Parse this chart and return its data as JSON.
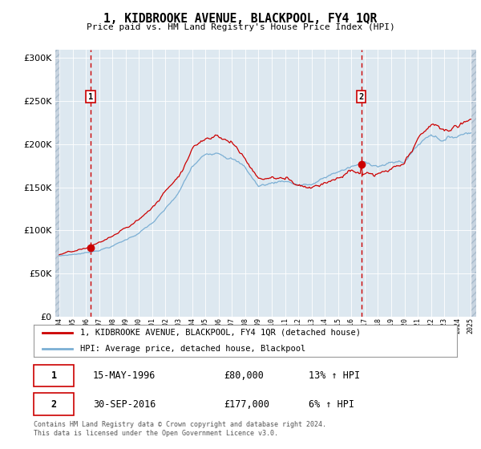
{
  "title": "1, KIDBROOKE AVENUE, BLACKPOOL, FY4 1QR",
  "subtitle": "Price paid vs. HM Land Registry's House Price Index (HPI)",
  "legend_line1": "1, KIDBROOKE AVENUE, BLACKPOOL, FY4 1QR (detached house)",
  "legend_line2": "HPI: Average price, detached house, Blackpool",
  "annotation1_label": "1",
  "annotation1_date": "15-MAY-1996",
  "annotation1_price": "£80,000",
  "annotation1_hpi": "13% ↑ HPI",
  "annotation1_year": 1996.37,
  "annotation1_value": 80000,
  "annotation2_label": "2",
  "annotation2_date": "30-SEP-2016",
  "annotation2_price": "£177,000",
  "annotation2_hpi": "6% ↑ HPI",
  "annotation2_year": 2016.75,
  "annotation2_value": 177000,
  "footer": "Contains HM Land Registry data © Crown copyright and database right 2024.\nThis data is licensed under the Open Government Licence v3.0.",
  "line_color_red": "#cc0000",
  "line_color_blue": "#7bafd4",
  "chart_bg": "#dde8f0",
  "hatch_bg": "#c8d4e0",
  "ylim": [
    0,
    310000
  ],
  "yticks": [
    0,
    50000,
    100000,
    150000,
    200000,
    250000,
    300000
  ],
  "xlim_min": 1993.7,
  "xlim_max": 2025.4,
  "hatch_end": 1994.08,
  "hatch_start_right": 2025.0
}
